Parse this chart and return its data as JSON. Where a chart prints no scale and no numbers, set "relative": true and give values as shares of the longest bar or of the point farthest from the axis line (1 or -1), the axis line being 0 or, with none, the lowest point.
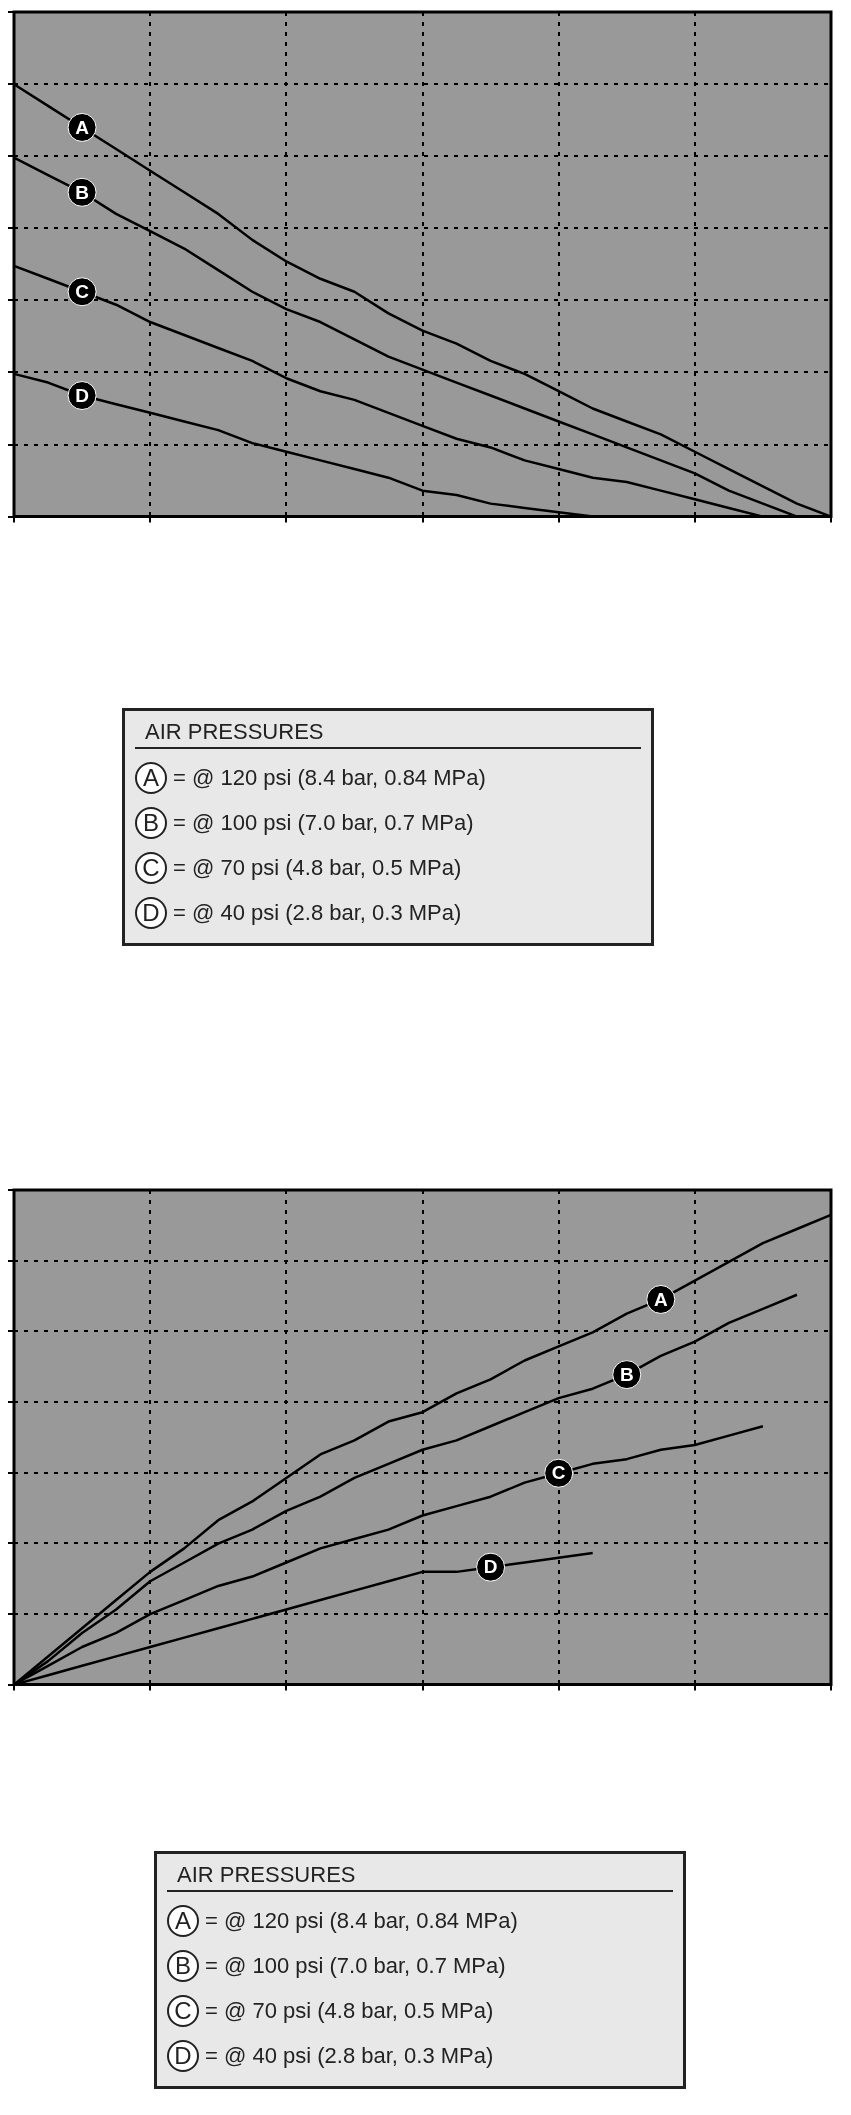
{
  "chart_data": [
    {
      "type": "line",
      "relative": true,
      "grid": true,
      "legend_title": "AIR PRESSURES",
      "annotations": [
        "= @ 120 psi (8.4 bar, 0.84 MPa)",
        "= @ 100 psi (7.0 bar, 0.7 MPa)",
        "= @ 70 psi (4.8 bar, 0.5 MPa)",
        "= @ 40 psi (2.8 bar, 0.3 MPa)"
      ],
      "categories": [
        null,
        null,
        null,
        null,
        null,
        null,
        null,
        null,
        null,
        null,
        null,
        null,
        null,
        null,
        null,
        null,
        null,
        null,
        null,
        null,
        null,
        null,
        null,
        null,
        null
      ],
      "series": [
        {
          "name": "A",
          "color": "#000000",
          "values": [
            1.0,
            0.95,
            0.9,
            0.85,
            0.8,
            0.75,
            0.7,
            0.64,
            0.59,
            0.55,
            0.52,
            0.47,
            0.43,
            0.4,
            0.36,
            0.33,
            0.29,
            0.25,
            0.22,
            0.19,
            0.15,
            0.11,
            0.07,
            0.03,
            0
          ]
        },
        {
          "name": "B",
          "color": "#000000",
          "values": [
            0.83,
            0.79,
            0.75,
            0.7,
            0.66,
            0.62,
            0.57,
            0.52,
            0.48,
            0.45,
            0.41,
            0.37,
            0.34,
            0.31,
            0.28,
            0.25,
            0.22,
            0.19,
            0.16,
            0.13,
            0.1,
            0.06,
            0.03,
            0,
            null
          ]
        },
        {
          "name": "C",
          "color": "#000000",
          "values": [
            0.58,
            0.55,
            0.52,
            0.49,
            0.45,
            0.42,
            0.39,
            0.36,
            0.32,
            0.29,
            0.27,
            0.24,
            0.21,
            0.18,
            0.16,
            0.13,
            0.11,
            0.09,
            0.08,
            0.06,
            0.04,
            0.02,
            0,
            null,
            null
          ]
        },
        {
          "name": "D",
          "color": "#000000",
          "values": [
            0.33,
            0.31,
            0.28,
            0.26,
            0.24,
            0.22,
            0.2,
            0.17,
            0.15,
            0.13,
            0.11,
            0.09,
            0.06,
            0.05,
            0.03,
            0.02,
            0.01,
            0,
            null,
            null,
            null,
            null,
            null,
            null,
            null
          ]
        }
      ]
    },
    {
      "type": "line",
      "relative": true,
      "grid": true,
      "legend_title": "AIR PRESSURES",
      "annotations": [
        "= @ 120 psi (8.4 bar, 0.84 MPa)",
        "= @ 100 psi (7.0 bar, 0.7 MPa)",
        "= @ 70 psi (4.8 bar, 0.5 MPa)",
        "= @ 40 psi (2.8 bar, 0.3 MPa)"
      ],
      "categories": [
        null,
        null,
        null,
        null,
        null,
        null,
        null,
        null,
        null,
        null,
        null,
        null,
        null,
        null,
        null,
        null,
        null,
        null,
        null,
        null,
        null,
        null,
        null,
        null,
        null
      ],
      "series": [
        {
          "name": "A",
          "color": "#000000",
          "values": [
            0,
            0.06,
            0.12,
            0.18,
            0.24,
            0.29,
            0.35,
            0.39,
            0.44,
            0.49,
            0.52,
            0.56,
            0.58,
            0.62,
            0.65,
            0.69,
            0.72,
            0.75,
            0.79,
            0.82,
            0.86,
            0.9,
            0.94,
            0.97,
            1.0
          ]
        },
        {
          "name": "B",
          "color": "#000000",
          "values": [
            0,
            0.05,
            0.11,
            0.16,
            0.22,
            0.26,
            0.3,
            0.33,
            0.37,
            0.4,
            0.44,
            0.47,
            0.5,
            0.52,
            0.55,
            0.58,
            0.61,
            0.63,
            0.66,
            0.7,
            0.73,
            0.77,
            0.8,
            0.83,
            null
          ]
        },
        {
          "name": "C",
          "color": "#000000",
          "values": [
            0,
            0.04,
            0.08,
            0.11,
            0.15,
            0.18,
            0.21,
            0.23,
            0.26,
            0.29,
            0.31,
            0.33,
            0.36,
            0.38,
            0.4,
            0.43,
            0.45,
            0.47,
            0.48,
            0.5,
            0.51,
            0.53,
            0.55,
            null,
            null
          ]
        },
        {
          "name": "D",
          "color": "#000000",
          "values": [
            0,
            0.02,
            0.04,
            0.06,
            0.08,
            0.1,
            0.12,
            0.14,
            0.16,
            0.18,
            0.2,
            0.22,
            0.24,
            0.24,
            0.25,
            0.26,
            0.27,
            0.28,
            null,
            null,
            null,
            null,
            null,
            null,
            null
          ]
        }
      ]
    }
  ]
}
